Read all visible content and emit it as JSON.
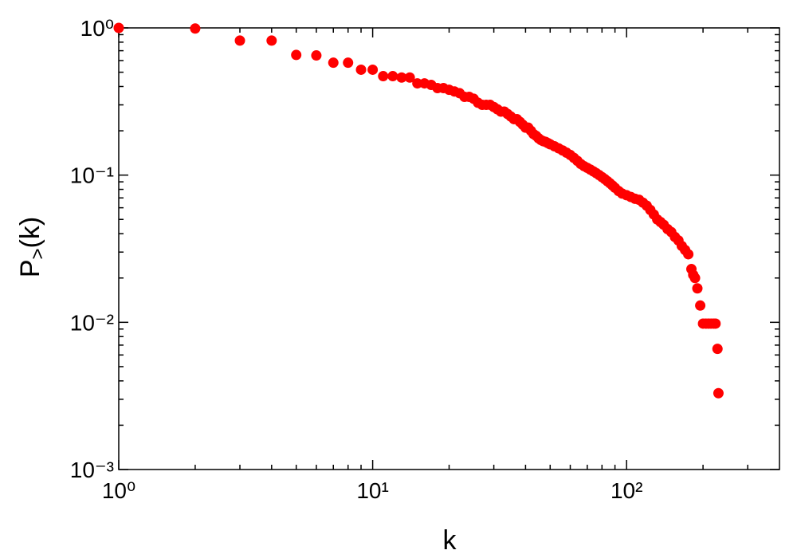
{
  "chart_data": {
    "type": "scatter",
    "xlabel": "k",
    "ylabel": {
      "base": "P",
      "subscript": ">",
      "arg": "(k)"
    },
    "xscale": "log",
    "yscale": "log",
    "xlim": [
      1,
      400
    ],
    "ylim": [
      0.001,
      1
    ],
    "xticks": [
      {
        "value": 1,
        "label": "10⁰"
      },
      {
        "value": 10,
        "label": "10¹"
      },
      {
        "value": 100,
        "label": "10²"
      }
    ],
    "yticks": [
      {
        "value": 0.001,
        "label": "10⁻³"
      },
      {
        "value": 0.01,
        "label": "10⁻²"
      },
      {
        "value": 0.1,
        "label": "10⁻¹"
      },
      {
        "value": 1,
        "label": "10⁰"
      }
    ],
    "series": [
      {
        "color": "#ff0000",
        "x": [
          1,
          2,
          3,
          4,
          5,
          6,
          7,
          8,
          9,
          10,
          11,
          12,
          13,
          14,
          15,
          16,
          17,
          18,
          19,
          20,
          21,
          22,
          23,
          24,
          25,
          26,
          27,
          28,
          29,
          30,
          31,
          32,
          33,
          34,
          35,
          36,
          37,
          38,
          39,
          40,
          41,
          42,
          43,
          44,
          45,
          46,
          47,
          48,
          49,
          50,
          52,
          54,
          56,
          58,
          60,
          62,
          64,
          66,
          68,
          70,
          72,
          74,
          76,
          78,
          80,
          82,
          84,
          86,
          88,
          90,
          93,
          96,
          100,
          104,
          108,
          112,
          116,
          120,
          124,
          128,
          132,
          136,
          140,
          145,
          150,
          155,
          160,
          165,
          170,
          175,
          180,
          183,
          186,
          190,
          195,
          200,
          205,
          210,
          215,
          220,
          224,
          228,
          230
        ],
        "values": [
          1,
          0.99,
          0.82,
          0.82,
          0.655,
          0.65,
          0.58,
          0.58,
          0.52,
          0.52,
          0.47,
          0.47,
          0.46,
          0.46,
          0.42,
          0.42,
          0.41,
          0.39,
          0.39,
          0.38,
          0.37,
          0.36,
          0.34,
          0.34,
          0.33,
          0.31,
          0.3,
          0.3,
          0.3,
          0.29,
          0.28,
          0.27,
          0.27,
          0.26,
          0.25,
          0.24,
          0.24,
          0.23,
          0.22,
          0.21,
          0.21,
          0.2,
          0.19,
          0.185,
          0.178,
          0.173,
          0.17,
          0.168,
          0.165,
          0.162,
          0.157,
          0.152,
          0.147,
          0.142,
          0.137,
          0.131,
          0.125,
          0.119,
          0.115,
          0.112,
          0.109,
          0.106,
          0.103,
          0.1,
          0.097,
          0.094,
          0.091,
          0.088,
          0.085,
          0.082,
          0.078,
          0.075,
          0.073,
          0.071,
          0.069,
          0.068,
          0.065,
          0.062,
          0.058,
          0.054,
          0.05,
          0.048,
          0.046,
          0.043,
          0.041,
          0.038,
          0.036,
          0.033,
          0.031,
          0.029,
          0.023,
          0.021,
          0.02,
          0.017,
          0.013,
          0.0098,
          0.0098,
          0.0098,
          0.0098,
          0.0098,
          0.0098,
          0.0066,
          0.0033
        ]
      }
    ]
  }
}
